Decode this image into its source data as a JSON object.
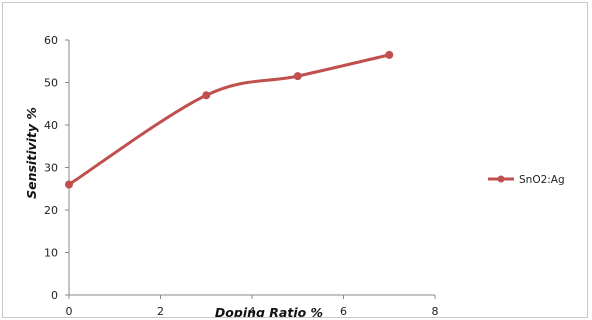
{
  "chart_data": {
    "type": "line",
    "title": "",
    "xlabel": "Doping Ratio %",
    "ylabel": "Sensitivity %",
    "xlim": [
      0,
      8
    ],
    "ylim": [
      0,
      60
    ],
    "xticks": [
      0,
      2,
      4,
      6,
      8
    ],
    "yticks": [
      0,
      10,
      20,
      30,
      40,
      50,
      60
    ],
    "grid": false,
    "smooth": true,
    "legend_position": "right",
    "series": [
      {
        "name": "SnO2:Ag",
        "color": "#c0504d",
        "marker": "circle",
        "x": [
          0,
          3,
          5,
          7
        ],
        "y": [
          26,
          47,
          51.5,
          56.5
        ]
      }
    ]
  }
}
